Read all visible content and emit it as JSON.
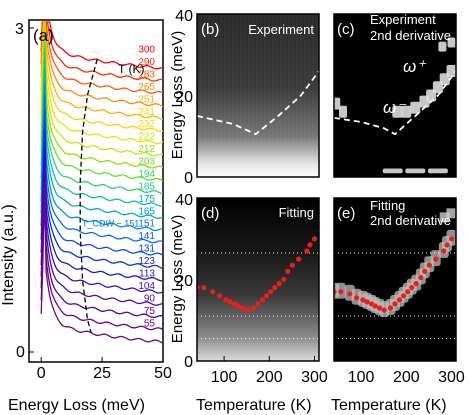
{
  "chart_data": [
    {
      "panel": "a",
      "type": "line",
      "panel_label": "(a)",
      "xlabel": "Energy Loss (meV)",
      "ylabel": "Intensity (a.u.)",
      "xlim": [
        -5,
        50
      ],
      "xticks": [
        0,
        25,
        50
      ],
      "yticks": [
        "0",
        "3"
      ],
      "legend_title": "T (K)",
      "temperatures": [
        300,
        290,
        283,
        265,
        251,
        241,
        232,
        222,
        212,
        203,
        194,
        185,
        175,
        165,
        151,
        141,
        131,
        123,
        113,
        104,
        90,
        75,
        55
      ],
      "temperature_colors": [
        "#ff0000",
        "#ff2a00",
        "#ff5a00",
        "#ff8c00",
        "#ffb000",
        "#ffd000",
        "#f0e000",
        "#c8e600",
        "#96e000",
        "#60e030",
        "#30d070",
        "#10c0a0",
        "#00b0c8",
        "#0090e0",
        "#0070f0",
        "#0050f0",
        "#0030e0",
        "#1818d0",
        "#3010c0",
        "#4808b0",
        "#5c00a0",
        "#6a0090",
        "#780080"
      ],
      "annotation": "T_CDW ~ 151",
      "annotation_temperature": 151,
      "series_spacing": 0.1152,
      "dashed_curve": {
        "x": [
          23,
          19,
          17,
          16,
          16,
          17,
          19,
          20.5
        ],
        "T": [
          300,
          265,
          232,
          194,
          151,
          113,
          75,
          55
        ]
      }
    },
    {
      "panel": "b",
      "type": "heatmap",
      "panel_label": "(b)",
      "title": "Experiment",
      "ylabel": "Energy Loss (meV)",
      "ylim": [
        0,
        40
      ],
      "yticks": [
        0,
        20,
        40
      ],
      "xlim": [
        40,
        310
      ],
      "dashed_curve": {
        "x": [
          40,
          80,
          120,
          170,
          220,
          270,
          310
        ],
        "y": [
          15,
          14,
          13,
          10.5,
          15,
          20,
          26
        ]
      }
    },
    {
      "panel": "c",
      "type": "heatmap",
      "panel_label": "(c)",
      "title_lines": [
        "Experiment",
        "2nd derivative"
      ],
      "ylim": [
        0,
        40
      ],
      "xlim": [
        40,
        310
      ],
      "labels": [
        "ω⁺",
        "ω⁻"
      ],
      "dashed_curve": {
        "x": [
          40,
          100,
          150,
          175,
          220,
          270,
          310
        ],
        "y": [
          14.5,
          13.5,
          12,
          10.5,
          15,
          20,
          26
        ]
      }
    },
    {
      "panel": "d",
      "type": "heatmap",
      "panel_label": "(d)",
      "title": "Fitting",
      "xlabel": "Temperature (K)",
      "ylabel": "Energy Loss (meV)",
      "xlim": [
        40,
        310
      ],
      "ylim": [
        0,
        40
      ],
      "xticks": [
        100,
        200,
        300
      ],
      "yticks": [
        0,
        20,
        40
      ],
      "hlines": [
        26.5,
        11,
        5.5
      ],
      "points": {
        "x": [
          40,
          55,
          75,
          90,
          104,
          113,
          123,
          131,
          141,
          151,
          165,
          175,
          185,
          194,
          203,
          212,
          222,
          232,
          241,
          251,
          265,
          283,
          290,
          300
        ],
        "y": [
          18,
          18,
          17,
          16,
          15,
          14.5,
          14,
          13.5,
          13,
          12.5,
          13,
          14,
          15,
          16,
          17,
          18,
          19,
          20,
          22,
          23.5,
          25,
          27,
          28.5,
          30
        ]
      }
    },
    {
      "panel": "e",
      "type": "heatmap",
      "panel_label": "(e)",
      "title_lines": [
        "Fitting",
        "2nd derivative"
      ],
      "xlabel": "Temperature (K)",
      "xlim": [
        40,
        310
      ],
      "ylim": [
        0,
        40
      ],
      "xticks": [
        100,
        200,
        300
      ],
      "hlines": [
        26.5,
        11,
        5.5
      ],
      "points": {
        "x": [
          40,
          55,
          75,
          90,
          104,
          113,
          123,
          131,
          141,
          151,
          165,
          175,
          185,
          194,
          203,
          212,
          222,
          232,
          241,
          251,
          265,
          283,
          290,
          300
        ],
        "y": [
          17,
          17,
          16.5,
          15.5,
          15,
          14.5,
          14,
          13.5,
          13,
          12.5,
          13,
          14,
          15,
          16,
          17,
          18,
          19,
          20.5,
          22,
          23.5,
          25,
          27,
          28.5,
          30
        ]
      }
    }
  ]
}
